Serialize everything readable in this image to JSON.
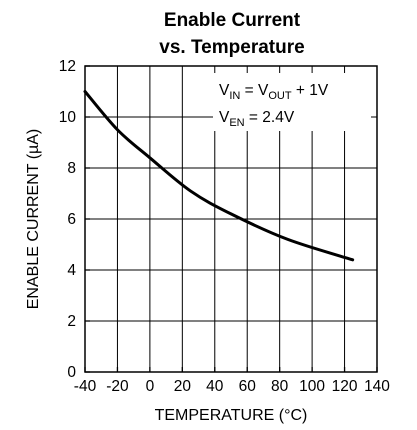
{
  "chart_data": {
    "type": "line",
    "title_line1": "Enable Current",
    "title_line2": "vs. Temperature",
    "xlabel": "TEMPERATURE (°C)",
    "ylabel": "ENABLE CURRENT (µA)",
    "xlim": [
      -40,
      140
    ],
    "ylim": [
      0,
      12
    ],
    "xticks": [
      -40,
      -20,
      0,
      20,
      40,
      60,
      80,
      100,
      120,
      140
    ],
    "yticks": [
      0,
      2,
      4,
      6,
      8,
      10,
      12
    ],
    "grid": true,
    "series": [
      {
        "x": [
          -40,
          -20,
          0,
          25,
          50,
          85,
          125
        ],
        "y": [
          11.0,
          9.5,
          8.4,
          7.1,
          6.2,
          5.2,
          4.4
        ]
      }
    ],
    "annotation": {
      "line1_main": "V",
      "line1_sub1": "IN",
      "line1_mid": " = V",
      "line1_sub2": "OUT",
      "line1_end": " + 1V",
      "line2_main": "V",
      "line2_sub": "EN",
      "line2_end": " = 2.4V"
    }
  }
}
